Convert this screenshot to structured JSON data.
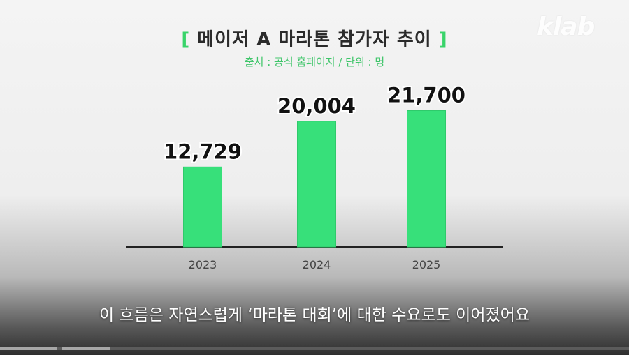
{
  "header": {
    "bracket_left": "[",
    "title": "메이저 A 마라톤 참가자 추이",
    "bracket_right": "]",
    "subtitle": "출처 : 공식 홈페이지 / 단위 : 명"
  },
  "logo": "klab",
  "caption": "이 흐름은 자연스럽게 ‘마라톤 대회’에 대한 수요로도 이어졌어요",
  "colors": {
    "bar": "#37e07a",
    "bar_edge": "#2fca6b",
    "accent": "#39d46a",
    "axis": "#222222"
  },
  "chart_data": {
    "type": "bar",
    "categories": [
      "2023",
      "2024",
      "2025"
    ],
    "values": [
      12729,
      20004,
      21700
    ],
    "data_labels": [
      "12,729",
      "20,004",
      "21,700"
    ],
    "title": "메이저 A 마라톤 참가자 추이",
    "subtitle": "출처 : 공식 홈페이지 / 단위 : 명",
    "ylim": [
      0,
      22200
    ],
    "grid": false,
    "legend": "none"
  }
}
